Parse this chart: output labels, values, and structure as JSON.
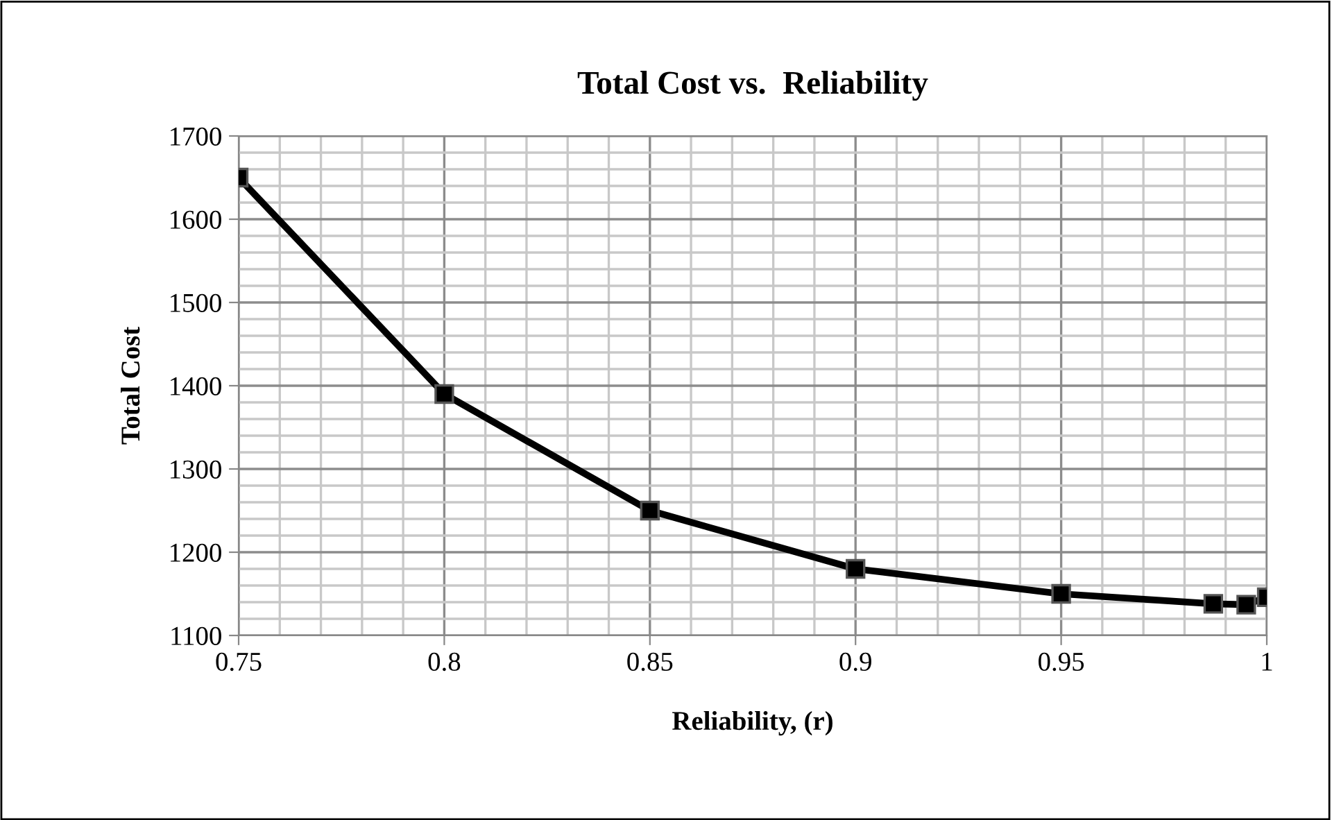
{
  "chart_data": {
    "type": "line",
    "title": "Total Cost vs.  Reliability",
    "xlabel": "Reliability, (r)",
    "ylabel": "Total Cost",
    "x": [
      0.75,
      0.8,
      0.85,
      0.9,
      0.95,
      0.987,
      0.995,
      1.0
    ],
    "series": [
      {
        "color": "#000000",
        "values": [
          1650,
          1390,
          1250,
          1180,
          1150,
          1138,
          1137,
          1146
        ]
      }
    ],
    "xlim": [
      0.75,
      1.0
    ],
    "xticks": [
      {
        "value": 0.75,
        "label": "0.75"
      },
      {
        "value": 0.8,
        "label": "0.8"
      },
      {
        "value": 0.85,
        "label": "0.85"
      },
      {
        "value": 0.9,
        "label": "0.9"
      },
      {
        "value": 0.95,
        "label": "0.95"
      },
      {
        "value": 1.0,
        "label": "1"
      }
    ],
    "ylim": [
      1100,
      1700
    ],
    "yticks": [
      1100,
      1200,
      1300,
      1400,
      1500,
      1600,
      1700
    ],
    "grid": true,
    "marker": "square",
    "line_style": "solid",
    "legend": false
  }
}
